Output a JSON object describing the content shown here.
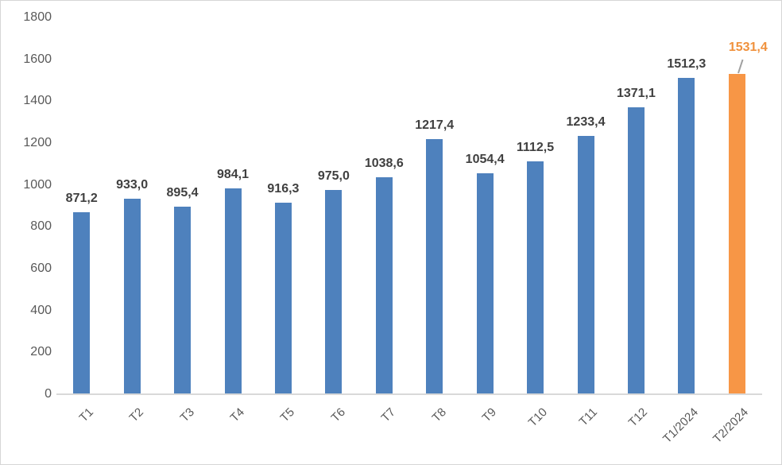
{
  "chart_data": {
    "type": "bar",
    "title": "",
    "xlabel": "",
    "ylabel": "",
    "categories": [
      "T1",
      "T2",
      "T3",
      "T4",
      "T5",
      "T6",
      "T7",
      "T8",
      "T9",
      "T10",
      "T11",
      "T12",
      "T1/2024",
      "T2/2024"
    ],
    "values": [
      871.2,
      933.0,
      895.4,
      984.1,
      916.3,
      975.0,
      1038.6,
      1217.4,
      1054.4,
      1112.5,
      1233.4,
      1371.1,
      1512.3,
      1531.4
    ],
    "value_labels": [
      "871,2",
      "933,0",
      "895,4",
      "984,1",
      "916,3",
      "975,0",
      "1038,6",
      "1217,4",
      "1054,4",
      "1112,5",
      "1233,4",
      "1371,1",
      "1512,3",
      "1531,4"
    ],
    "ylim": [
      0,
      1800
    ],
    "ytick_step": 200,
    "ytick_labels": [
      "0",
      "200",
      "400",
      "600",
      "800",
      "1000",
      "1200",
      "1400",
      "1600",
      "1800"
    ],
    "grid": false,
    "legend": false,
    "x_labels_rotation_deg": 45,
    "highlight_index": 13,
    "colors": {
      "bar": "#4E81BD",
      "highlight_bar": "#F79646",
      "data_label": "#404040",
      "highlight_data_label": "#F0913C",
      "tick_label": "#595959",
      "axis_line": "#D9D9D9",
      "leader_line": "#A0A0A0",
      "background": "#FFFFFF"
    }
  }
}
